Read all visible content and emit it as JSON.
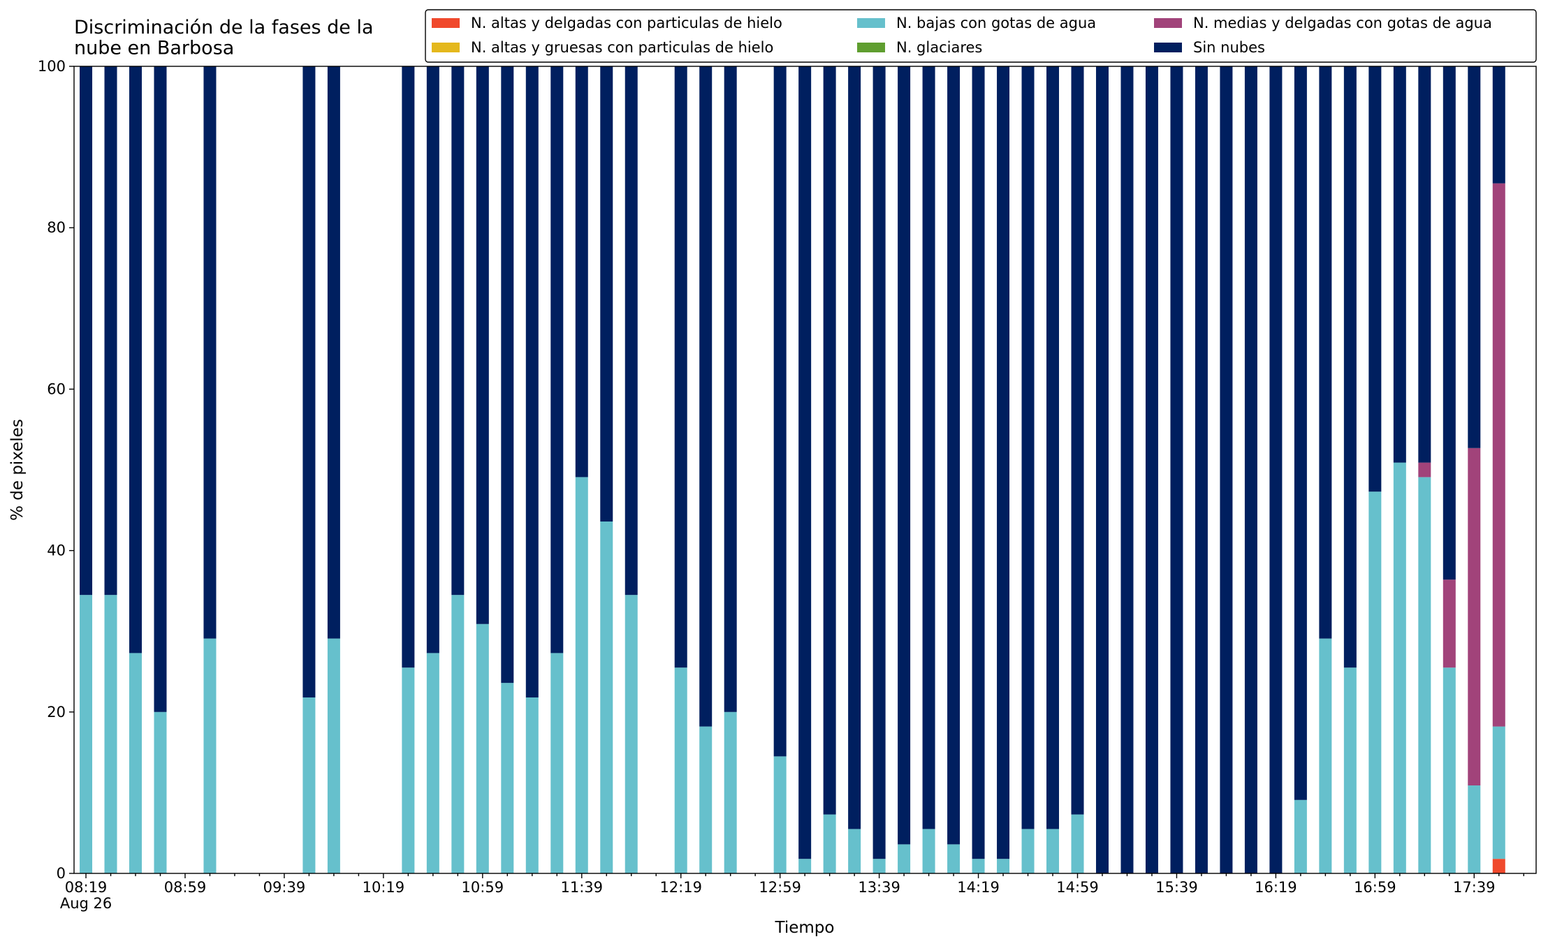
{
  "chart_data": {
    "type": "stacked_bar",
    "title": "Discriminación de la fases de la\nnube en Barbosa",
    "x_label": "Tiempo",
    "y_label": "% de pixeles",
    "categories": [
      "08:19\nAug 26",
      null,
      null,
      null,
      "08:59",
      null,
      null,
      null,
      "09:39",
      null,
      null,
      null,
      "10:19",
      null,
      null,
      null,
      "10:59",
      null,
      null,
      null,
      "11:39",
      null,
      null,
      null,
      "12:19",
      null,
      null,
      null,
      "12:59",
      null,
      null,
      null,
      "13:39",
      null,
      null,
      null,
      "14:19",
      null,
      null,
      null,
      "14:59",
      null,
      null,
      null,
      "15:39",
      null,
      null,
      null,
      "16:19",
      null,
      null,
      null,
      "16:59",
      null,
      null,
      null,
      "17:39",
      null
    ],
    "series": [
      {
        "name": "N. altas y delgadas con particulas de hielo",
        "color": "#f0492c",
        "values": [
          0,
          0,
          0,
          0,
          null,
          0,
          null,
          null,
          null,
          0,
          0,
          null,
          null,
          0,
          0,
          0,
          0,
          0,
          0,
          0,
          0,
          0,
          0,
          null,
          0,
          0,
          0,
          null,
          0,
          0,
          0,
          0,
          0,
          0,
          0,
          0,
          0,
          0,
          0,
          0,
          0,
          0,
          0,
          0,
          0,
          0,
          0,
          0,
          0,
          0,
          0,
          0,
          0,
          0,
          0,
          0,
          0,
          1.8
        ]
      },
      {
        "name": "N. altas y gruesas con particulas de hielo",
        "color": "#e4b81c",
        "values": [
          0,
          0,
          0,
          0,
          null,
          0,
          null,
          null,
          null,
          0,
          0,
          null,
          null,
          0,
          0,
          0,
          0,
          0,
          0,
          0,
          0,
          0,
          0,
          null,
          0,
          0,
          0,
          null,
          0,
          0,
          0,
          0,
          0,
          0,
          0,
          0,
          0,
          0,
          0,
          0,
          0,
          0,
          0,
          0,
          0,
          0,
          0,
          0,
          0,
          0,
          0,
          0,
          0,
          0,
          0,
          0,
          0,
          0
        ]
      },
      {
        "name": "N. bajas con gotas de agua",
        "color": "#66c0cc",
        "values": [
          34.5,
          34.5,
          27.3,
          20,
          null,
          29.1,
          null,
          null,
          null,
          21.8,
          29.1,
          null,
          null,
          25.5,
          27.3,
          34.5,
          30.9,
          23.6,
          21.8,
          27.3,
          49.1,
          43.6,
          34.5,
          null,
          25.5,
          18.2,
          20,
          null,
          14.5,
          1.8,
          7.3,
          5.5,
          1.8,
          3.6,
          5.5,
          3.6,
          1.8,
          1.8,
          5.5,
          5.5,
          7.3,
          0,
          0,
          0,
          0,
          0,
          0,
          0,
          0,
          9.1,
          29.1,
          25.5,
          47.3,
          50.9,
          49.1,
          25.5,
          10.9,
          16.4
        ]
      },
      {
        "name": "N. glaciares",
        "color": "#5f9e2f",
        "values": [
          0,
          0,
          0,
          0,
          null,
          0,
          null,
          null,
          null,
          0,
          0,
          null,
          null,
          0,
          0,
          0,
          0,
          0,
          0,
          0,
          0,
          0,
          0,
          null,
          0,
          0,
          0,
          null,
          0,
          0,
          0,
          0,
          0,
          0,
          0,
          0,
          0,
          0,
          0,
          0,
          0,
          0,
          0,
          0,
          0,
          0,
          0,
          0,
          0,
          0,
          0,
          0,
          0,
          0,
          0,
          0,
          0,
          0
        ]
      },
      {
        "name": "N. medias y delgadas con gotas de agua",
        "color": "#a1437a",
        "values": [
          0,
          0,
          0,
          0,
          null,
          0,
          null,
          null,
          null,
          0,
          0,
          null,
          null,
          0,
          0,
          0,
          0,
          0,
          0,
          0,
          0,
          0,
          0,
          null,
          0,
          0,
          0,
          null,
          0,
          0,
          0,
          0,
          0,
          0,
          0,
          0,
          0,
          0,
          0,
          0,
          0,
          0,
          0,
          0,
          0,
          0,
          0,
          0,
          0,
          0,
          0,
          0,
          0,
          0,
          1.8,
          10.9,
          41.8,
          67.3
        ]
      },
      {
        "name": "Sin nubes",
        "color": "#001f5f",
        "values": [
          65.5,
          65.5,
          72.7,
          80,
          null,
          70.9,
          null,
          null,
          null,
          78.2,
          70.9,
          null,
          null,
          74.5,
          72.7,
          65.5,
          69.1,
          76.4,
          78.2,
          72.7,
          50.9,
          56.4,
          65.5,
          null,
          74.5,
          81.8,
          80,
          null,
          85.5,
          98.2,
          92.7,
          94.5,
          98.2,
          96.4,
          94.5,
          96.4,
          98.2,
          98.2,
          94.5,
          94.5,
          92.7,
          100,
          100,
          100,
          100,
          100,
          100,
          100,
          100,
          90.9,
          70.9,
          74.5,
          52.7,
          49.1,
          49.1,
          63.6,
          47.3,
          14.5
        ]
      }
    ],
    "ylim": [
      0,
      100
    ],
    "yticks": [
      0,
      20,
      40,
      60,
      80,
      100
    ],
    "legend": "upper right"
  }
}
